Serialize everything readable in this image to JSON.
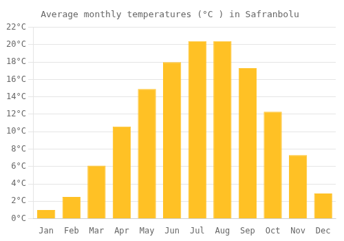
{
  "chart_data": {
    "type": "bar",
    "title": "Average monthly temperatures (°C ) in Safranbolu",
    "categories": [
      "Jan",
      "Feb",
      "Mar",
      "Apr",
      "May",
      "Jun",
      "Jul",
      "Aug",
      "Sep",
      "Oct",
      "Nov",
      "Dec"
    ],
    "values": [
      1.0,
      2.5,
      6.1,
      10.6,
      14.9,
      18.0,
      20.4,
      20.4,
      17.3,
      12.3,
      7.3,
      2.9
    ],
    "color": "#FFC125",
    "ylim": [
      0,
      22
    ],
    "yticks": [
      {
        "value": 0,
        "label": "0°C"
      },
      {
        "value": 2,
        "label": "2°C"
      },
      {
        "value": 4,
        "label": "4°C"
      },
      {
        "value": 6,
        "label": "6°C"
      },
      {
        "value": 8,
        "label": "8°C"
      },
      {
        "value": 10,
        "label": "10°C"
      },
      {
        "value": 12,
        "label": "12°C"
      },
      {
        "value": 14,
        "label": "14°C"
      },
      {
        "value": 16,
        "label": "16°C"
      },
      {
        "value": 18,
        "label": "18°C"
      },
      {
        "value": 20,
        "label": "20°C"
      },
      {
        "value": 22,
        "label": "22°C"
      }
    ],
    "grid": true
  }
}
